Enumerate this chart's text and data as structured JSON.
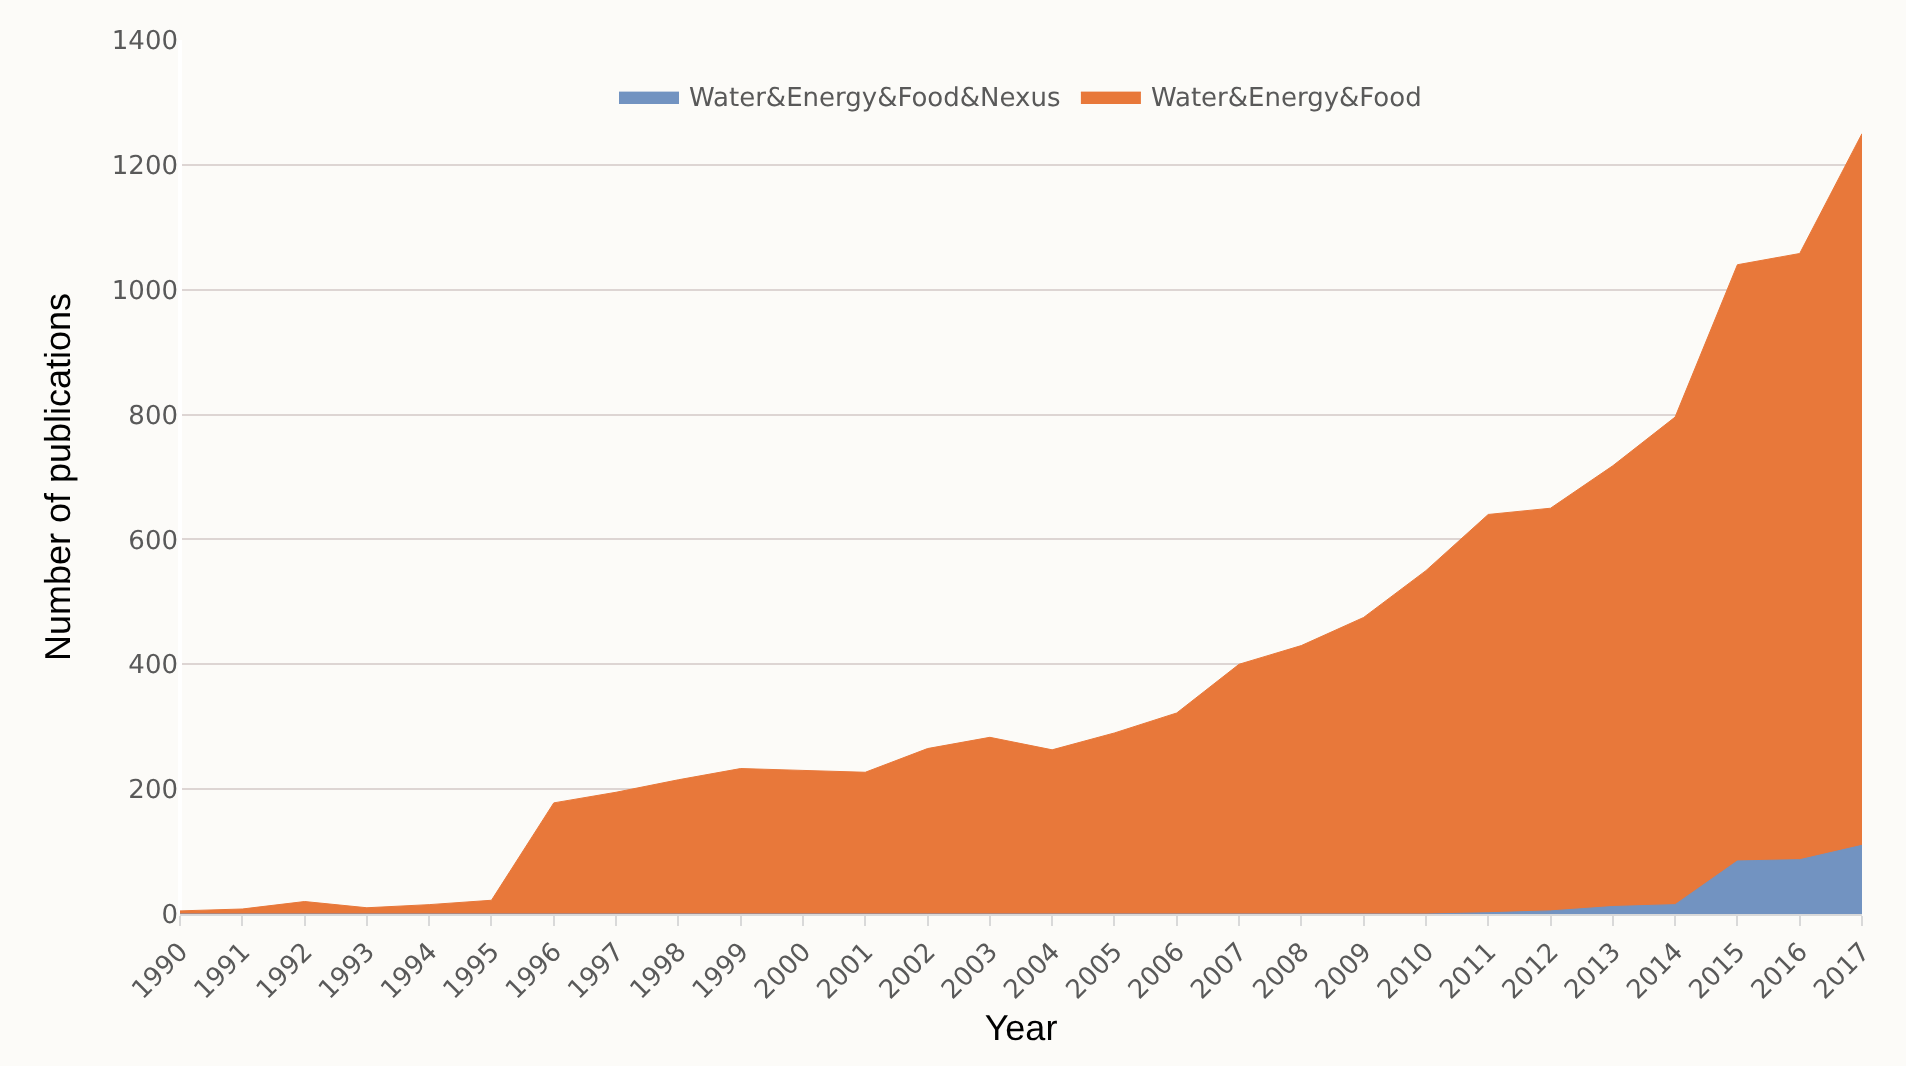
{
  "chart_data": {
    "type": "area",
    "xlabel": "Year",
    "ylabel": "Number of publications",
    "categories": [
      "1990",
      "1991",
      "1992",
      "1993",
      "1994",
      "1995",
      "1996",
      "1997",
      "1998",
      "1999",
      "2000",
      "2001",
      "2002",
      "2003",
      "2004",
      "2005",
      "2006",
      "2007",
      "2008",
      "2009",
      "2010",
      "2011",
      "2012",
      "2013",
      "2014",
      "2015",
      "2016",
      "2017"
    ],
    "series": [
      {
        "name": "Water&Energy&Food",
        "color": "#e8783a",
        "values": [
          5,
          8,
          20,
          10,
          15,
          22,
          178,
          195,
          215,
          233,
          230,
          227,
          265,
          283,
          263,
          290,
          322,
          400,
          430,
          475,
          550,
          640,
          650,
          718,
          796,
          1040,
          1058,
          1250
        ]
      },
      {
        "name": "Water&Energy&Food&Nexus",
        "color": "#7293c1",
        "values": [
          0,
          0,
          0,
          0,
          0,
          0,
          0,
          0,
          0,
          0,
          0,
          0,
          0,
          0,
          0,
          0,
          0,
          0,
          0,
          0,
          0,
          2,
          5,
          12,
          15,
          85,
          87,
          110
        ]
      }
    ],
    "ylim": [
      0,
      1400
    ],
    "yticks": [
      0,
      200,
      400,
      600,
      800,
      1000,
      1200,
      1400
    ],
    "grid": "y",
    "legend": "top"
  }
}
